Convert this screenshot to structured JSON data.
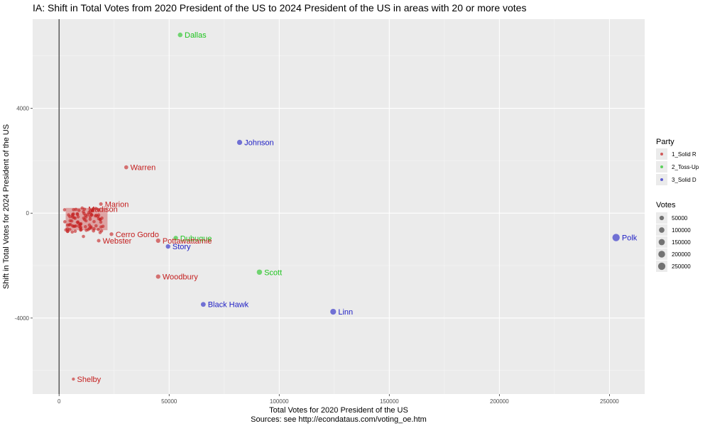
{
  "chart_data": {
    "type": "scatter",
    "title": "IA: Shift in Total Votes from 2020 President of the US to 2024 President of the US in areas with 20 or more votes",
    "xlabel": "Total Votes for 2020 President of the US",
    "ylabel": "Shift in Total Votes for 2024 President of the US",
    "caption": "Sources: see http://econdataus.com/voting_oe.htm",
    "xlim": [
      -12000,
      266000
    ],
    "ylim": [
      -6900,
      7400
    ],
    "x_ticks": [
      0,
      50000,
      100000,
      150000,
      200000,
      250000
    ],
    "y_ticks": [
      -4000,
      0,
      4000
    ],
    "grid": true,
    "party_legend": {
      "title": "Party",
      "entries": [
        {
          "name": "1_Solid R",
          "color": "#c41e1e"
        },
        {
          "name": "2_Toss-Up",
          "color": "#1ec41e"
        },
        {
          "name": "3_Solid D",
          "color": "#1e1ec4"
        }
      ]
    },
    "size_legend": {
      "title": "Votes",
      "entries": [
        50000,
        100000,
        150000,
        200000,
        250000
      ]
    },
    "points": [
      {
        "label": "Dallas",
        "x": 55000,
        "y": 6800,
        "party": "2_Toss-Up"
      },
      {
        "label": "Johnson",
        "x": 82000,
        "y": 2700,
        "party": "3_Solid D"
      },
      {
        "label": "Warren",
        "x": 30500,
        "y": 1750,
        "party": "1_Solid R"
      },
      {
        "label": "Marion",
        "x": 19000,
        "y": 350,
        "party": "1_Solid R"
      },
      {
        "label": "Madison",
        "x": 11500,
        "y": 150,
        "party": "1_Solid R"
      },
      {
        "label": "Cerro Gordo",
        "x": 23800,
        "y": -800,
        "party": "1_Solid R"
      },
      {
        "label": "Dubuque",
        "x": 53000,
        "y": -950,
        "party": "2_Toss-Up"
      },
      {
        "label": "Pottawattamie",
        "x": 45000,
        "y": -1050,
        "party": "1_Solid R"
      },
      {
        "label": "Webster",
        "x": 18000,
        "y": -1050,
        "party": "1_Solid R"
      },
      {
        "label": "Story",
        "x": 49500,
        "y": -1270,
        "party": "3_Solid D"
      },
      {
        "label": "Polk",
        "x": 253000,
        "y": -930,
        "party": "3_Solid D"
      },
      {
        "label": "Scott",
        "x": 91000,
        "y": -2250,
        "party": "2_Toss-Up"
      },
      {
        "label": "Woodbury",
        "x": 45000,
        "y": -2420,
        "party": "1_Solid R"
      },
      {
        "label": "Black Hawk",
        "x": 65500,
        "y": -3480,
        "party": "3_Solid D"
      },
      {
        "label": "Linn",
        "x": 124500,
        "y": -3760,
        "party": "3_Solid D"
      },
      {
        "label": "Shelby",
        "x": 6500,
        "y": -6330,
        "party": "1_Solid R"
      }
    ]
  }
}
